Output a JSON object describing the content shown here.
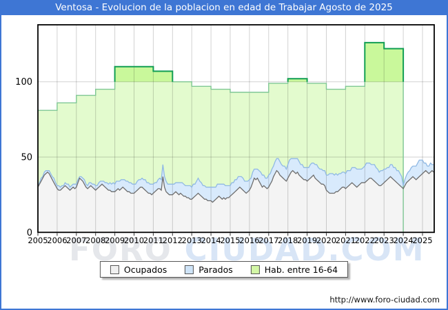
{
  "title": "Ventosa - Evolucion de la poblacion en edad de Trabajar Agosto de 2025",
  "watermark": {
    "part1": "FORO ",
    "part2": "CIUDAD.COM"
  },
  "footer": {
    "url": "http://www.foro-ciudad.com"
  },
  "legend": {
    "items": [
      {
        "label": "Ocupados",
        "swatch_color": "#f0f0f0"
      },
      {
        "label": "Parados",
        "swatch_color": "#cfe4f8"
      },
      {
        "label": "Hab. entre 16-64",
        "swatch_color": "#d3f7a6"
      }
    ]
  },
  "colors": {
    "titlebar_blue": "#3e76d4",
    "frame_border_blue": "#3e76d4",
    "hab_fill": "#e3fbce",
    "hab_cap_fill": "#c9f89b",
    "hab_stroke": "#7fc794",
    "hab_cap_stroke": "#119e53",
    "parados_fill": "#d8eafc",
    "parados_stroke": "#90b9e4",
    "ocupados_fill": "#f4f4f4",
    "ocupados_stroke": "#6e6e6e",
    "grid": "rgba(0,0,0,0.18)",
    "plot_border": "#000000"
  },
  "chart_data": {
    "type": "area",
    "title": "Ventosa - Evolucion de la poblacion en edad de Trabajar Agosto de 2025",
    "xlabel": "",
    "ylabel": "",
    "x_ticks": [
      2005,
      2006,
      2007,
      2008,
      2009,
      2010,
      2011,
      2012,
      2013,
      2014,
      2015,
      2016,
      2017,
      2018,
      2019,
      2020,
      2021,
      2022,
      2023,
      2024,
      2025
    ],
    "y_ticks": [
      0,
      50,
      100
    ],
    "ylim": [
      0,
      137
    ],
    "xlim": [
      2005,
      2025.66
    ],
    "grid": true,
    "legend_position": "bottom",
    "series": [
      {
        "name": "Hab. entre 16-64",
        "type": "annual-step-area",
        "start_year": 2005,
        "end_year": 2024,
        "values": [
          81,
          86,
          91,
          95,
          110,
          110,
          107,
          100,
          97,
          95,
          93,
          93,
          99,
          102,
          99,
          95,
          97,
          126,
          122
        ]
      },
      {
        "name": "Ocupados",
        "type": "monthly-area",
        "start_year": 2005,
        "values": [
          30,
          32,
          34,
          36,
          38,
          39,
          40,
          39,
          37,
          35,
          33,
          31,
          29,
          28,
          28,
          29,
          30,
          31,
          30,
          29,
          28,
          29,
          30,
          29,
          30,
          33,
          36,
          35,
          34,
          32,
          30,
          29,
          30,
          31,
          30,
          29,
          28,
          29,
          30,
          31,
          32,
          31,
          30,
          29,
          28,
          28,
          27,
          27,
          27,
          28,
          29,
          28,
          29,
          30,
          29,
          28,
          27,
          27,
          26,
          26,
          26,
          27,
          28,
          29,
          30,
          30,
          29,
          28,
          27,
          26,
          26,
          25,
          26,
          27,
          28,
          29,
          29,
          28,
          37,
          30,
          27,
          26,
          25,
          25,
          25,
          26,
          27,
          26,
          25,
          26,
          25,
          24,
          24,
          23,
          23,
          22,
          22,
          23,
          24,
          25,
          26,
          25,
          24,
          23,
          22,
          22,
          21,
          21,
          21,
          20,
          21,
          22,
          23,
          24,
          23,
          22,
          23,
          22,
          23,
          23,
          24,
          25,
          26,
          27,
          28,
          29,
          30,
          29,
          28,
          27,
          26,
          27,
          28,
          30,
          33,
          36,
          35,
          36,
          34,
          32,
          30,
          31,
          30,
          29,
          30,
          32,
          34,
          37,
          39,
          41,
          40,
          38,
          37,
          36,
          35,
          34,
          36,
          38,
          40,
          41,
          40,
          39,
          40,
          38,
          37,
          36,
          35,
          35,
          34,
          35,
          36,
          37,
          38,
          36,
          35,
          34,
          33,
          32,
          32,
          31,
          28,
          27,
          26,
          26,
          26,
          26,
          27,
          27,
          28,
          29,
          30,
          30,
          29,
          30,
          31,
          32,
          33,
          32,
          31,
          30,
          31,
          32,
          33,
          33,
          33,
          34,
          35,
          36,
          36,
          35,
          34,
          33,
          32,
          31,
          31,
          32,
          33,
          34,
          35,
          36,
          37,
          36,
          35,
          34,
          33,
          32,
          31,
          30,
          29,
          31,
          33,
          34,
          35,
          36,
          37,
          36,
          35,
          36,
          37,
          38,
          39,
          40,
          41,
          40,
          39,
          40,
          41,
          40
        ]
      },
      {
        "name": "Parados",
        "type": "monthly-area-stacked-on-ocupados",
        "start_year": 2005,
        "values": [
          1,
          1,
          2,
          1,
          2,
          2,
          1,
          2,
          2,
          2,
          3,
          2,
          2,
          3,
          2,
          2,
          1,
          2,
          2,
          3,
          2,
          2,
          2,
          3,
          2,
          2,
          1,
          2,
          2,
          3,
          2,
          2,
          3,
          2,
          2,
          3,
          3,
          2,
          3,
          3,
          2,
          3,
          3,
          4,
          4,
          5,
          5,
          6,
          5,
          6,
          5,
          6,
          6,
          5,
          6,
          6,
          7,
          6,
          7,
          6,
          6,
          5,
          6,
          6,
          5,
          6,
          6,
          7,
          6,
          7,
          6,
          7,
          6,
          6,
          5,
          6,
          7,
          7,
          8,
          7,
          7,
          6,
          7,
          7,
          7,
          6,
          6,
          7,
          8,
          7,
          8,
          8,
          7,
          8,
          8,
          9,
          8,
          9,
          8,
          9,
          10,
          9,
          9,
          8,
          9,
          8,
          9,
          9,
          9,
          10,
          9,
          8,
          9,
          8,
          9,
          10,
          9,
          9,
          8,
          8,
          7,
          8,
          7,
          8,
          7,
          8,
          7,
          8,
          8,
          7,
          8,
          7,
          7,
          6,
          7,
          6,
          7,
          6,
          7,
          8,
          8,
          7,
          6,
          7,
          8,
          7,
          8,
          7,
          8,
          8,
          9,
          9,
          8,
          8,
          9,
          8,
          9,
          10,
          9,
          8,
          9,
          10,
          9,
          9,
          8,
          9,
          8,
          8,
          9,
          8,
          9,
          9,
          8,
          9,
          10,
          9,
          9,
          10,
          9,
          10,
          10,
          11,
          13,
          13,
          13,
          12,
          12,
          11,
          11,
          10,
          10,
          10,
          10,
          11,
          10,
          9,
          10,
          11,
          12,
          12,
          11,
          10,
          9,
          10,
          11,
          12,
          11,
          10,
          9,
          10,
          11,
          10,
          10,
          9,
          10,
          9,
          9,
          8,
          8,
          7,
          8,
          9,
          8,
          9,
          8,
          9,
          8,
          7,
          2,
          4,
          5,
          6,
          6,
          7,
          7,
          8,
          9,
          10,
          11,
          10,
          9,
          6,
          5,
          4,
          5,
          6,
          4,
          5
        ]
      }
    ]
  }
}
